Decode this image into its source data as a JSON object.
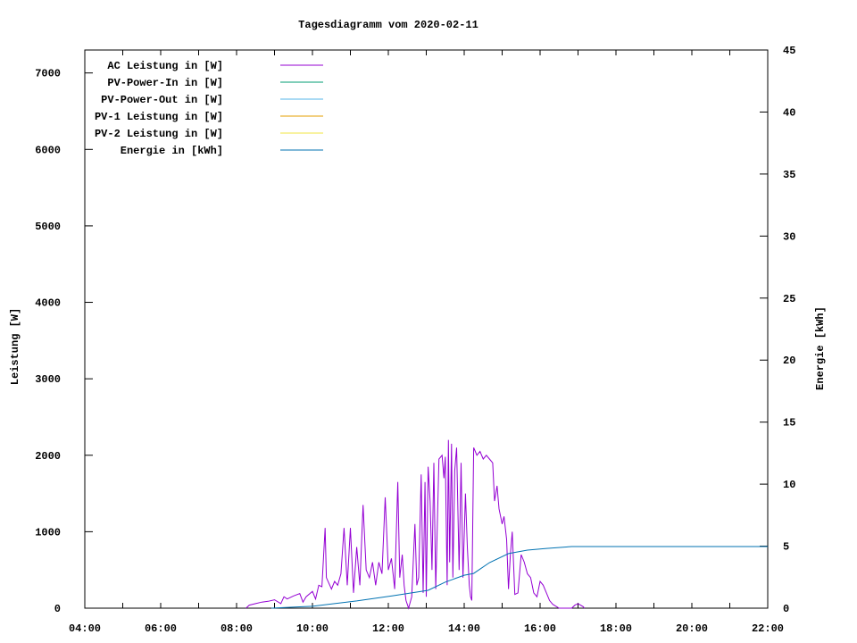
{
  "chart_data": {
    "type": "line",
    "title": "Tagesdiagramm vom 2020-02-11",
    "xlabel": "",
    "ylabel": "Leistung [W]",
    "y2label": "Energie [kWh]",
    "xlim": [
      "04:00",
      "22:00"
    ],
    "ylim": [
      0,
      7300
    ],
    "y2lim": [
      0,
      45
    ],
    "x_ticks": [
      "04:00",
      "06:00",
      "08:00",
      "10:00",
      "12:00",
      "14:00",
      "16:00",
      "18:00",
      "20:00",
      "22:00"
    ],
    "y_ticks": [
      "0",
      "1000",
      "2000",
      "3000",
      "4000",
      "5000",
      "6000",
      "7000"
    ],
    "y2_ticks": [
      "0",
      "5",
      "10",
      "15",
      "20",
      "25",
      "30",
      "35",
      "40",
      "45"
    ],
    "grid": false,
    "legend_position": "top-left",
    "series": [
      {
        "name": "AC Leistung in [W]",
        "axis": "y",
        "color": "#9400d3",
        "x": [
          "08:15",
          "08:20",
          "08:30",
          "08:40",
          "08:50",
          "09:00",
          "09:10",
          "09:15",
          "09:20",
          "09:30",
          "09:40",
          "09:45",
          "09:50",
          "10:00",
          "10:05",
          "10:10",
          "10:15",
          "10:20",
          "10:22",
          "10:30",
          "10:35",
          "10:40",
          "10:45",
          "10:50",
          "10:55",
          "11:00",
          "11:05",
          "11:10",
          "11:15",
          "11:20",
          "11:25",
          "11:30",
          "11:35",
          "11:40",
          "11:45",
          "11:50",
          "11:55",
          "12:00",
          "12:05",
          "12:10",
          "12:15",
          "12:18",
          "12:22",
          "12:25",
          "12:28",
          "12:32",
          "12:37",
          "12:42",
          "12:45",
          "12:48",
          "12:52",
          "12:55",
          "12:58",
          "13:00",
          "13:03",
          "13:06",
          "13:09",
          "13:12",
          "13:15",
          "13:20",
          "13:25",
          "13:28",
          "13:30",
          "13:33",
          "13:35",
          "13:37",
          "13:40",
          "13:42",
          "13:45",
          "13:48",
          "13:52",
          "13:55",
          "13:58",
          "14:02",
          "14:05",
          "14:08",
          "14:10",
          "14:12",
          "14:15",
          "14:20",
          "14:25",
          "14:30",
          "14:35",
          "14:40",
          "14:45",
          "14:48",
          "14:52",
          "14:55",
          "15:00",
          "15:03",
          "15:07",
          "15:10",
          "15:13",
          "15:16",
          "15:20",
          "15:25",
          "15:30",
          "15:35",
          "15:40",
          "15:45",
          "15:50",
          "15:55",
          "16:00",
          "16:05",
          "16:10",
          "16:15",
          "16:20",
          "16:30",
          "16:50",
          "16:55",
          "17:00",
          "17:08",
          "17:10"
        ],
        "values": [
          0,
          40,
          60,
          80,
          90,
          110,
          60,
          150,
          120,
          160,
          190,
          80,
          150,
          220,
          120,
          300,
          280,
          1050,
          400,
          250,
          350,
          300,
          450,
          1050,
          300,
          1050,
          200,
          800,
          300,
          1350,
          500,
          400,
          600,
          300,
          600,
          450,
          1450,
          500,
          650,
          250,
          1650,
          400,
          700,
          300,
          100,
          0,
          150,
          1100,
          300,
          400,
          1750,
          200,
          1650,
          150,
          1850,
          1400,
          500,
          1900,
          250,
          1950,
          2000,
          1700,
          1980,
          300,
          2200,
          600,
          2150,
          400,
          1800,
          2100,
          500,
          1900,
          400,
          1500,
          800,
          300,
          150,
          100,
          2100,
          2000,
          2050,
          1950,
          2000,
          1950,
          1900,
          1400,
          1600,
          1300,
          1100,
          1200,
          900,
          250,
          700,
          1000,
          180,
          200,
          700,
          600,
          450,
          400,
          200,
          150,
          350,
          300,
          200,
          100,
          50,
          0,
          0,
          40,
          60,
          20,
          0
        ]
      },
      {
        "name": "PV-Power-In in [W]",
        "axis": "y",
        "color": "#009e73",
        "x": [],
        "values": []
      },
      {
        "name": "PV-Power-Out in [W]",
        "axis": "y",
        "color": "#56b4e9",
        "x": [],
        "values": []
      },
      {
        "name": "PV-1 Leistung in [W]",
        "axis": "y",
        "color": "#e69f00",
        "x": [],
        "values": []
      },
      {
        "name": "PV-2 Leistung in [W]",
        "axis": "y",
        "color": "#f0e442",
        "x": [],
        "values": []
      },
      {
        "name": "Energie in [kWh]",
        "axis": "y2",
        "color": "#0072b2",
        "x": [
          "08:55",
          "09:36",
          "10:00",
          "11:10",
          "12:07",
          "13:03",
          "13:30",
          "14:00",
          "14:15",
          "14:40",
          "15:10",
          "15:40",
          "16:10",
          "16:50",
          "22:00"
        ],
        "values": [
          0,
          0.1,
          0.15,
          0.58,
          1.0,
          1.44,
          2.1,
          2.66,
          2.8,
          3.67,
          4.4,
          4.68,
          4.82,
          4.97,
          4.97
        ]
      }
    ]
  }
}
